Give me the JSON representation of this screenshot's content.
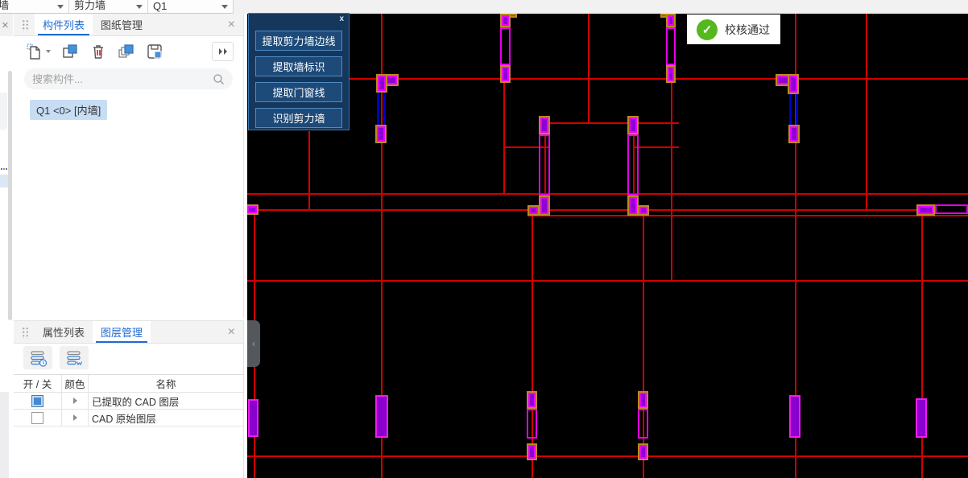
{
  "top_bar": {
    "fields": [
      {
        "label": "墙"
      },
      {
        "label": "剪力墙"
      },
      {
        "label": "Q1"
      }
    ]
  },
  "component_panel": {
    "tabs": [
      {
        "label": "构件列表",
        "active": true
      },
      {
        "label": "图纸管理",
        "active": false
      }
    ],
    "search_placeholder": "搜索构件...",
    "items": [
      {
        "label": "Q1 <0> [内墙]",
        "selected": true
      }
    ]
  },
  "layer_panel": {
    "tabs": [
      {
        "label": "属性列表",
        "active": false
      },
      {
        "label": "图层管理",
        "active": true
      }
    ],
    "table": {
      "headers": [
        "开 / 关",
        "颜色",
        "名称"
      ],
      "rows": [
        {
          "name": "已提取的 CAD 图层",
          "on": true
        },
        {
          "name": "CAD 原始图层",
          "on": false
        }
      ]
    }
  },
  "cad_toolbar": {
    "close_label": "x",
    "buttons": [
      "提取剪力墙边线",
      "提取墙标识",
      "提取门窗线",
      "识别剪力墙"
    ]
  },
  "status_badge": {
    "label": "校核通过"
  },
  "colors": {
    "canvas_bg": "#000000",
    "cad_line_red": "#d40000",
    "wall_fill": "#8f00d6",
    "wall_edge_magenta": "#ff00ff",
    "wall_outline_yellow": "#bb8a1e",
    "wall_connector_blue": "#0000c2",
    "accent_blue": "#1f6bd0",
    "check_green": "#55b91e",
    "toolbar_panel": "#16375c",
    "toolbar_button": "#1d4a78"
  }
}
